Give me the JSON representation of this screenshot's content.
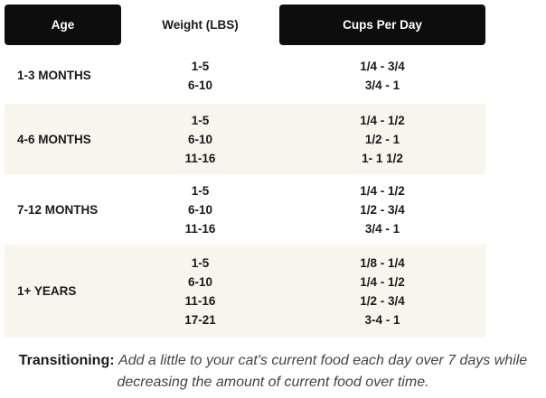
{
  "table": {
    "headers": [
      "Age",
      "Weight (LBS)",
      "Cups Per Day"
    ],
    "rows": [
      {
        "age": "1-3 MONTHS",
        "weights": [
          "1-5",
          "6-10"
        ],
        "cups": [
          "1/4 - 3/4",
          "3/4 - 1"
        ]
      },
      {
        "age": "4-6 MONTHS",
        "weights": [
          "1-5",
          "6-10",
          "11-16"
        ],
        "cups": [
          "1/4 - 1/2",
          "1/2 - 1",
          "1- 1 1/2"
        ]
      },
      {
        "age": "7-12 MONTHS",
        "weights": [
          "1-5",
          "6-10",
          "11-16"
        ],
        "cups": [
          "1/4 - 1/2",
          "1/2 - 3/4",
          "3/4 - 1"
        ]
      },
      {
        "age": "1+ YEARS",
        "weights": [
          "1-5",
          "6-10",
          "11-16",
          "17-21"
        ],
        "cups": [
          "1/8 - 1/4",
          "1/4 - 1/2",
          "1/2 - 3/4",
          "3-4 - 1"
        ]
      }
    ]
  },
  "footer": {
    "label": "Transitioning:",
    "text": "Add a little to your cat's current food each day over 7 days while decreasing the amount of current food over time."
  }
}
